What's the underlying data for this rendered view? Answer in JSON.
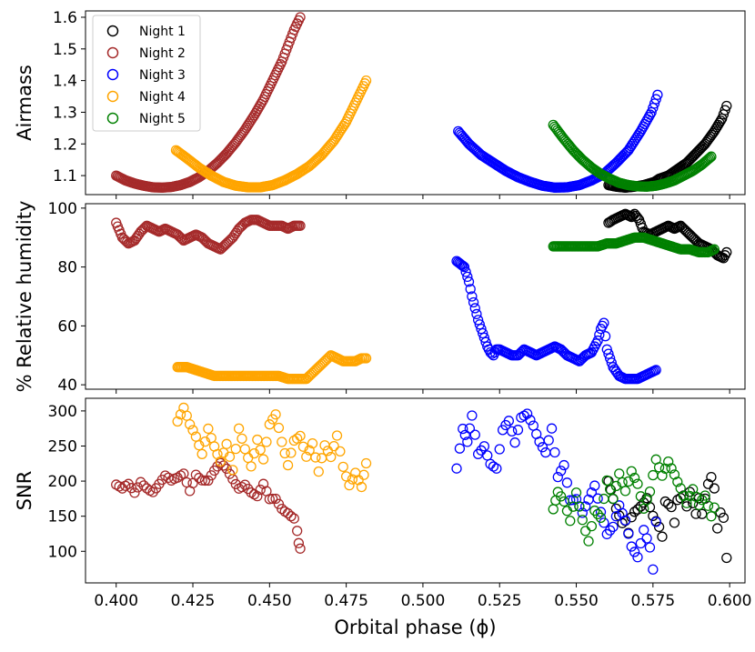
{
  "chart_data": {
    "type": "scatter",
    "marker": "hollow-circle",
    "xlabel": "Orbital phase (ϕ)",
    "xlim": [
      0.39,
      0.605
    ],
    "xticks": [
      0.4,
      0.425,
      0.45,
      0.475,
      0.5,
      0.525,
      0.55,
      0.575,
      0.6
    ],
    "xtick_labels": [
      "0.400",
      "0.425",
      "0.450",
      "0.475",
      "0.500",
      "0.525",
      "0.550",
      "0.575",
      "0.600"
    ],
    "series_styles": [
      {
        "name": "Night 1",
        "color": "#000000"
      },
      {
        "name": "Night 2",
        "color": "#a52a2a"
      },
      {
        "name": "Night 3",
        "color": "#0000ff"
      },
      {
        "name": "Night 4",
        "color": "#ffa500"
      },
      {
        "name": "Night 5",
        "color": "#008000"
      }
    ],
    "legend": {
      "placement": "upper-left",
      "panel": "Airmass"
    },
    "panels": [
      {
        "ylabel": "Airmass",
        "ylim": [
          1.04,
          1.62
        ],
        "yticks": [
          1.1,
          1.2,
          1.3,
          1.4,
          1.5,
          1.6
        ],
        "ytick_labels": [
          "1.1",
          "1.2",
          "1.3",
          "1.4",
          "1.5",
          "1.6"
        ],
        "series": [
          {
            "name": "Night 1",
            "x": [
              0.5605,
              0.563,
              0.566,
              0.569,
              0.572,
              0.5755,
              0.577,
              0.58,
              0.583,
              0.586,
              0.589,
              0.592,
              0.595,
              0.5975,
              0.599
            ],
            "y": [
              1.07,
              1.065,
              1.062,
              1.065,
              1.07,
              1.08,
              1.09,
              1.1,
              1.12,
              1.14,
              1.17,
              1.2,
              1.24,
              1.28,
              1.32
            ]
          },
          {
            "name": "Night 2",
            "x": [
              0.4,
              0.403,
              0.406,
              0.409,
              0.412,
              0.415,
              0.418,
              0.421,
              0.424,
              0.427,
              0.43,
              0.433,
              0.436,
              0.439,
              0.442,
              0.445,
              0.448,
              0.451,
              0.454,
              0.456,
              0.458,
              0.46
            ],
            "y": [
              1.1,
              1.085,
              1.075,
              1.068,
              1.063,
              1.062,
              1.064,
              1.07,
              1.08,
              1.095,
              1.115,
              1.14,
              1.17,
              1.205,
              1.245,
              1.29,
              1.34,
              1.4,
              1.46,
              1.51,
              1.56,
              1.6
            ]
          },
          {
            "name": "Night 3",
            "x": [
              0.5115,
              0.515,
              0.519,
              0.523,
              0.527,
              0.531,
              0.535,
              0.539,
              0.543,
              0.547,
              0.551,
              0.555,
              0.559,
              0.563,
              0.567,
              0.571,
              0.5745,
              0.5765
            ],
            "y": [
              1.24,
              1.2,
              1.165,
              1.14,
              1.115,
              1.095,
              1.08,
              1.068,
              1.062,
              1.063,
              1.07,
              1.085,
              1.105,
              1.14,
              1.18,
              1.24,
              1.3,
              1.355
            ]
          },
          {
            "name": "Night 4",
            "x": [
              0.4195,
              0.423,
              0.427,
              0.431,
              0.435,
              0.439,
              0.443,
              0.447,
              0.451,
              0.455,
              0.459,
              0.463,
              0.467,
              0.471,
              0.475,
              0.478,
              0.4815
            ],
            "y": [
              1.18,
              1.155,
              1.125,
              1.1,
              1.08,
              1.068,
              1.063,
              1.063,
              1.07,
              1.085,
              1.105,
              1.13,
              1.165,
              1.21,
              1.27,
              1.33,
              1.4
            ]
          },
          {
            "name": "Night 5",
            "x": [
              0.5425,
              0.546,
              0.549,
              0.552,
              0.555,
              0.558,
              0.561,
              0.564,
              0.567,
              0.57,
              0.573,
              0.576,
              0.579,
              0.582,
              0.585,
              0.588,
              0.591,
              0.594
            ],
            "y": [
              1.26,
              1.215,
              1.18,
              1.15,
              1.125,
              1.105,
              1.09,
              1.077,
              1.07,
              1.066,
              1.065,
              1.068,
              1.075,
              1.085,
              1.1,
              1.115,
              1.135,
              1.16
            ]
          }
        ]
      },
      {
        "ylabel": "% Relative humidity",
        "ylim": [
          38.5,
          101.5
        ],
        "yticks": [
          40,
          60,
          80,
          100
        ],
        "ytick_labels": [
          "40",
          "60",
          "80",
          "100"
        ],
        "series": [
          {
            "name": "Night 1",
            "x": [
              0.5605,
              0.562,
              0.564,
              0.566,
              0.568,
              0.569,
              0.5705,
              0.572,
              0.574,
              0.576,
              0.578,
              0.58,
              0.582,
              0.584,
              0.586,
              0.588,
              0.59,
              0.592,
              0.594,
              0.596,
              0.598,
              0.599
            ],
            "y": [
              95,
              96,
              97,
              98,
              97,
              98,
              96,
              92,
              91,
              92,
              93,
              94,
              93,
              94,
              92,
              90,
              88,
              87,
              86,
              84,
              83,
              85
            ]
          },
          {
            "name": "Night 2",
            "x": [
              0.4,
              0.402,
              0.404,
              0.406,
              0.408,
              0.41,
              0.412,
              0.414,
              0.416,
              0.418,
              0.42,
              0.422,
              0.424,
              0.426,
              0.428,
              0.43,
              0.432,
              0.434,
              0.436,
              0.438,
              0.44,
              0.442,
              0.444,
              0.446,
              0.448,
              0.45,
              0.452,
              0.454,
              0.456,
              0.458,
              0.46
            ],
            "y": [
              95,
              90,
              88,
              89,
              92,
              94,
              93,
              92,
              93,
              92,
              91,
              89,
              90,
              91,
              90,
              88,
              87,
              86,
              88,
              90,
              93,
              95,
              96,
              96,
              95,
              94,
              94,
              94,
              93,
              94,
              94
            ]
          },
          {
            "name": "Night 3",
            "x": [
              0.511,
              0.5135,
              0.515,
              0.516,
              0.517,
              0.518,
              0.519,
              0.52,
              0.521,
              0.522,
              0.523,
              0.524,
              0.525,
              0.527,
              0.529,
              0.531,
              0.533,
              0.535,
              0.537,
              0.539,
              0.541,
              0.543,
              0.545,
              0.547,
              0.549,
              0.551,
              0.553,
              0.555,
              0.557,
              0.558,
              0.559,
              0.56,
              0.562,
              0.564,
              0.566,
              0.568,
              0.57,
              0.572,
              0.574,
              0.576
            ],
            "y": [
              82,
              80,
              75,
              70,
              66,
              62,
              59,
              56,
              53,
              51,
              50,
              52,
              52,
              51,
              50,
              50,
              52,
              51,
              50,
              51,
              52,
              53,
              52,
              50,
              49,
              48,
              50,
              51,
              55,
              59,
              61,
              52,
              46,
              43,
              42,
              42,
              42,
              43,
              44,
              45
            ]
          },
          {
            "name": "Night 4",
            "x": [
              0.42,
              0.423,
              0.426,
              0.429,
              0.432,
              0.435,
              0.438,
              0.441,
              0.444,
              0.447,
              0.45,
              0.453,
              0.456,
              0.458,
              0.46,
              0.462,
              0.464,
              0.466,
              0.468,
              0.47,
              0.472,
              0.474,
              0.476,
              0.478,
              0.48,
              0.4815
            ],
            "y": [
              46,
              46,
              45,
              44,
              43,
              43,
              43,
              43,
              43,
              43,
              43,
              43,
              42,
              42,
              42,
              42,
              44,
              46,
              48,
              50,
              49,
              48,
              48,
              48,
              49,
              49
            ]
          },
          {
            "name": "Night 5",
            "x": [
              0.5425,
              0.545,
              0.548,
              0.551,
              0.554,
              0.557,
              0.56,
              0.563,
              0.566,
              0.569,
              0.572,
              0.575,
              0.578,
              0.581,
              0.584,
              0.587,
              0.59,
              0.593,
              0.595
            ],
            "y": [
              87,
              87,
              87,
              87,
              87,
              87,
              88,
              88,
              89,
              90,
              90,
              89,
              88,
              87,
              86,
              86,
              85,
              85,
              86
            ]
          }
        ]
      },
      {
        "ylabel": "SNR",
        "ylim": [
          55,
          318
        ],
        "yticks": [
          100,
          150,
          200,
          250,
          300
        ],
        "ytick_labels": [
          "100",
          "150",
          "200",
          "250",
          "300"
        ],
        "series": [
          {
            "name": "Night 1",
            "x": [
              0.5605,
              0.562,
              0.563,
              0.564,
              0.565,
              0.566,
              0.567,
              0.568,
              0.569,
              0.571,
              0.573,
              0.575,
              0.577,
              0.578,
              0.579,
              0.581,
              0.582,
              0.583,
              0.585,
              0.586,
              0.587,
              0.589,
              0.59,
              0.591,
              0.593,
              0.594,
              0.595,
              0.596,
              0.597,
              0.598,
              0.599
            ],
            "y": [
              200,
              170,
              155,
              145,
              135,
              140,
              125,
              150,
              160,
              170,
              180,
              150,
              130,
              115,
              165,
              160,
              140,
              175,
              185,
              170,
              190,
              155,
              175,
              150,
              190,
              200,
              185,
              130,
              155,
              150,
              95
            ]
          },
          {
            "name": "Night 2",
            "x": [
              0.4,
              0.402,
              0.404,
              0.406,
              0.408,
              0.41,
              0.412,
              0.414,
              0.416,
              0.418,
              0.42,
              0.422,
              0.424,
              0.426,
              0.428,
              0.43,
              0.432,
              0.434,
              0.436,
              0.438,
              0.44,
              0.442,
              0.444,
              0.446,
              0.448,
              0.45,
              0.452,
              0.454,
              0.456,
              0.458,
              0.459,
              0.4595,
              0.46
            ],
            "y": [
              195,
              185,
              190,
              180,
              200,
              195,
              190,
              198,
              205,
              195,
              200,
              210,
              190,
              215,
              205,
              200,
              210,
              220,
              215,
              205,
              195,
              200,
              185,
              175,
              190,
              170,
              175,
              165,
              160,
              150,
              130,
              110,
              100
            ]
          },
          {
            "name": "Night 3",
            "x": [
              0.511,
              0.513,
              0.5145,
              0.516,
              0.518,
              0.52,
              0.522,
              0.524,
              0.526,
              0.528,
              0.53,
              0.532,
              0.534,
              0.536,
              0.538,
              0.54,
              0.542,
              0.544,
              0.546,
              0.548,
              0.55,
              0.552,
              0.554,
              0.556,
              0.558,
              0.56,
              0.562,
              0.564,
              0.566,
              0.568,
              0.57,
              0.572,
              0.574,
              0.575,
              0.576
            ],
            "y": [
              218,
              270,
              250,
              290,
              240,
              255,
              230,
              220,
              270,
              280,
              250,
              290,
              300,
              285,
              260,
              240,
              270,
              200,
              220,
              175,
              180,
              160,
              175,
              190,
              150,
              120,
              135,
              170,
              150,
              110,
              90,
              125,
              100,
              70,
              140
            ]
          },
          {
            "name": "Night 4",
            "x": [
              0.42,
              0.422,
              0.424,
              0.426,
              0.428,
              0.43,
              0.432,
              0.434,
              0.436,
              0.438,
              0.44,
              0.442,
              0.444,
              0.446,
              0.448,
              0.45,
              0.452,
              0.454,
              0.456,
              0.458,
              0.46,
              0.462,
              0.464,
              0.466,
              0.468,
              0.47,
              0.472,
              0.474,
              0.476,
              0.478,
              0.48,
              0.4815
            ],
            "y": [
              285,
              300,
              275,
              260,
              240,
              280,
              255,
              230,
              250,
              210,
              270,
              245,
              225,
              265,
              235,
              280,
              290,
              250,
              220,
              260,
              270,
              240,
              255,
              210,
              245,
              230,
              265,
              225,
              200,
              215,
              190,
              220
            ]
          },
          {
            "name": "Night 5",
            "x": [
              0.5425,
              0.544,
              0.546,
              0.548,
              0.55,
              0.552,
              0.554,
              0.556,
              0.558,
              0.56,
              0.562,
              0.564,
              0.566,
              0.568,
              0.57,
              0.572,
              0.574,
              0.576,
              0.578,
              0.58,
              0.582,
              0.584,
              0.586,
              0.588,
              0.59,
              0.592,
              0.594,
              0.595
            ],
            "y": [
              160,
              180,
              165,
              140,
              185,
              150,
              120,
              160,
              145,
              195,
              170,
              210,
              190,
              220,
              200,
              160,
              180,
              225,
              205,
              230,
              215,
              195,
              170,
              185,
              160,
              175,
              150,
              165
            ]
          }
        ]
      }
    ]
  }
}
